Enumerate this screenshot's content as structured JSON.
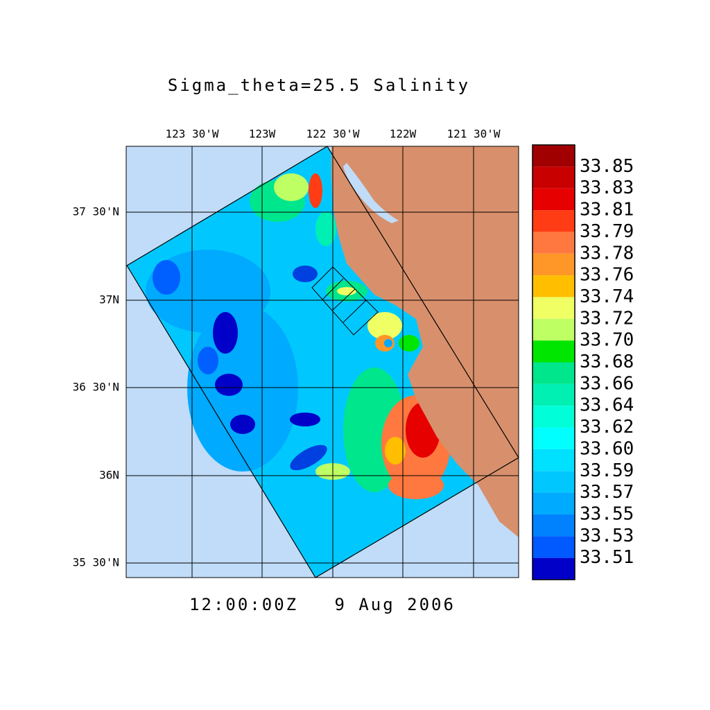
{
  "title": "Sigma_theta=25.5 Salinity",
  "timestamp": "12:00:00Z   9 Aug 2006",
  "lon_labels": [
    "123 30'W",
    "123W",
    "122 30'W",
    "122W",
    "121 30'W"
  ],
  "lat_labels": [
    "37 30'N",
    "37N",
    "36 30'N",
    "36N",
    "35 30'N"
  ],
  "colorbar": {
    "labels": [
      "33.85",
      "33.83",
      "33.81",
      "33.79",
      "33.78",
      "33.76",
      "33.74",
      "33.72",
      "33.70",
      "33.68",
      "33.66",
      "33.64",
      "33.62",
      "33.60",
      "33.59",
      "33.57",
      "33.55",
      "33.53",
      "33.51"
    ],
    "colors": [
      "#a00000",
      "#c80000",
      "#e60000",
      "#ff3c14",
      "#ff7840",
      "#ff9628",
      "#ffbe00",
      "#f0ff64",
      "#beff64",
      "#00e600",
      "#00e68c",
      "#00f0b4",
      "#00ffd8",
      "#00ffff",
      "#00e0ff",
      "#00c8ff",
      "#00aaff",
      "#0082ff",
      "#005aff",
      "#0000c8"
    ]
  }
}
